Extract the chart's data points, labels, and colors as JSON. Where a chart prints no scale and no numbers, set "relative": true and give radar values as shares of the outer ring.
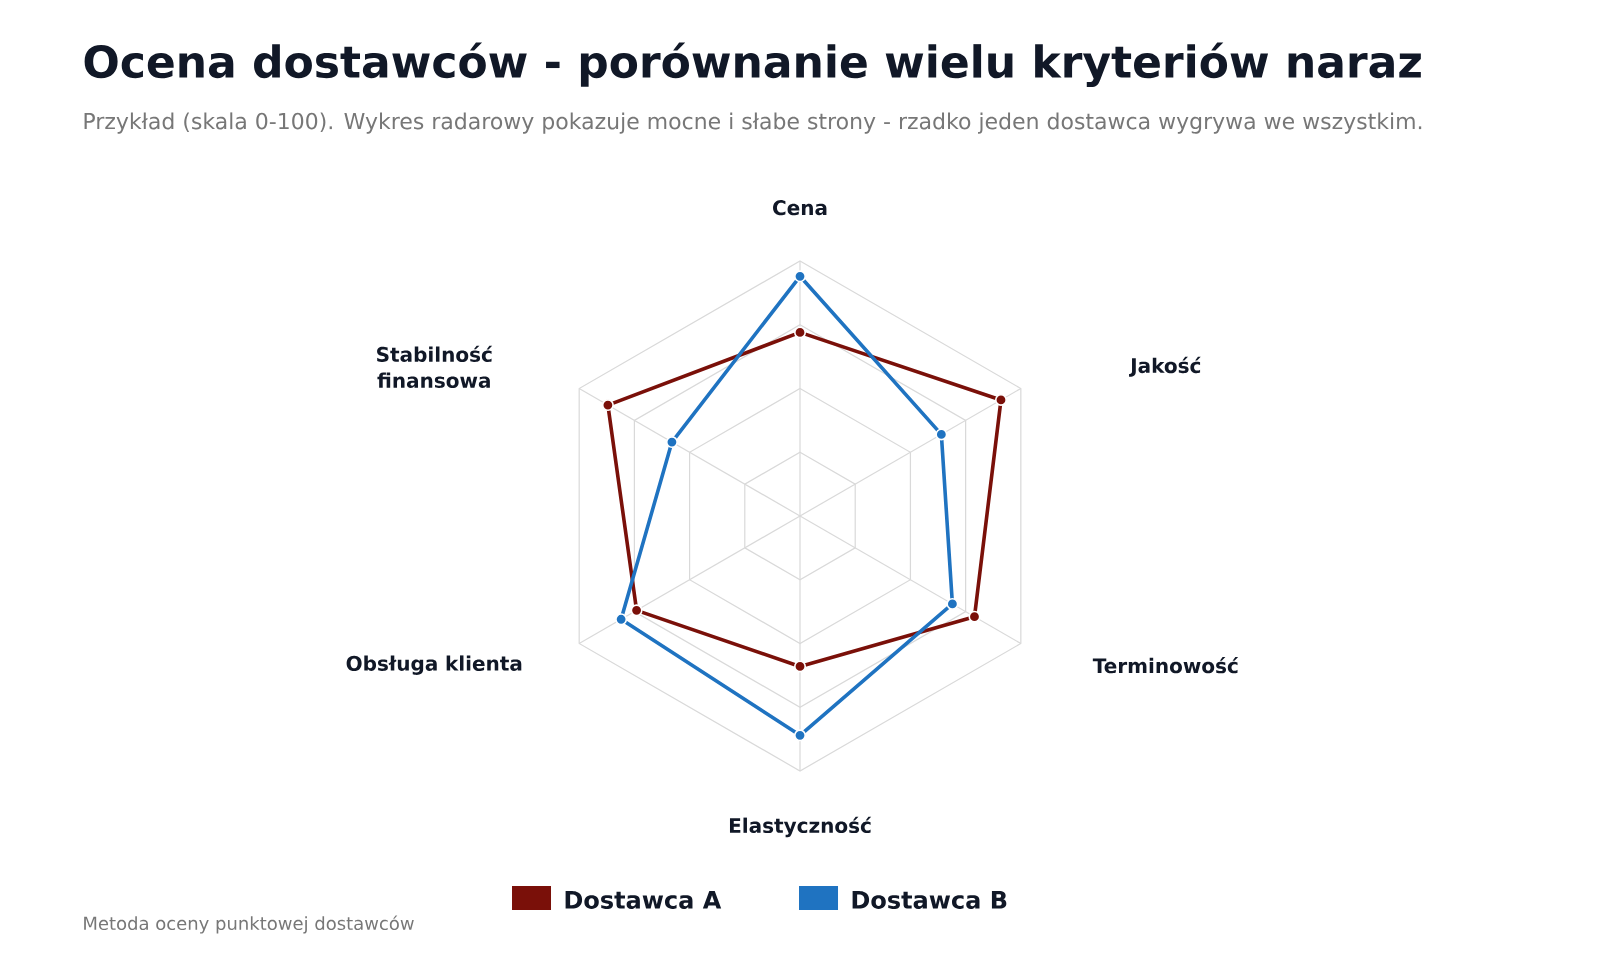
{
  "chart_data": {
    "type": "radar",
    "title": "Ocena dostawców - porównanie wielu kryteriów naraz",
    "subtitle": "Przykład (skala 0-100). Wykres radarowy pokazuje mocne i słabe strony - rzadko jeden dostawca wygrywa we wszystkim.",
    "annotations": [
      "Metoda oceny punktowej dostawców"
    ],
    "categories": [
      "Cena",
      "Jakość",
      "Terminowość",
      "Elastyczność",
      "Obsługa klienta",
      "Stabilność finansowa"
    ],
    "relative": true,
    "grid": true,
    "legend": "bottom",
    "marker": "circle",
    "line_style": "solid",
    "series": [
      {
        "name": "Dostawca A",
        "color": "#7a1009",
        "values": [
          0.72,
          0.91,
          0.79,
          0.59,
          0.74,
          0.87
        ]
      },
      {
        "name": "Dostawca B",
        "color": "#1f73c1",
        "values": [
          0.94,
          0.64,
          0.69,
          0.86,
          0.81,
          0.58
        ]
      }
    ]
  }
}
